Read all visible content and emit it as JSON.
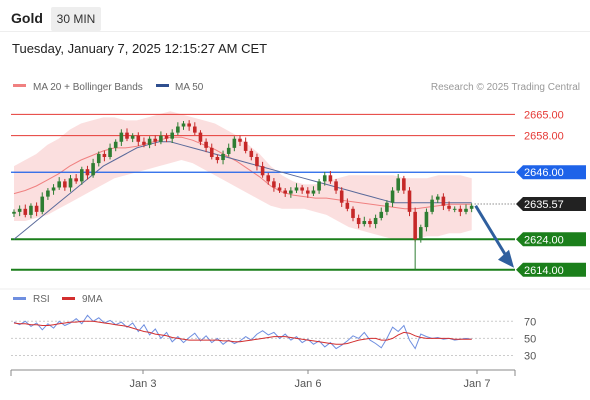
{
  "header": {
    "instrument": "Gold",
    "timeframe": "30 MIN",
    "datetime": "Tuesday, January 7, 2025 12:15:27 AM CET"
  },
  "watermark": "Research © 2025 Trading Central",
  "colors": {
    "bull_candle": "#2e7d32",
    "bear_candle": "#c62828",
    "resistance": "#e53935",
    "current_level": "#1e63e9",
    "support": "#1b7f1b",
    "ma50": "#5a6a9a",
    "bands": "#f8c9c9",
    "rsi": "#6f8fe0",
    "rsi_ma": "#d32f2f",
    "arrow": "#2f5f9e",
    "price_tag": "#222222"
  },
  "chart_data": {
    "type": "candlestick",
    "legend": [
      {
        "label": "MA 20 + Bollinger Bands",
        "color": "#f08080"
      },
      {
        "label": "MA 50",
        "color": "#2f4f8f"
      }
    ],
    "x_ticks": [
      "Jan 3",
      "Jan 6",
      "Jan 7"
    ],
    "ylim": [
      2609,
      2672
    ],
    "last_price": 2635.57,
    "levels": [
      {
        "value": 2665.0,
        "label": "2665.00",
        "kind": "resistance"
      },
      {
        "value": 2658.0,
        "label": "2658.00",
        "kind": "resistance"
      },
      {
        "value": 2646.0,
        "label": "2646.00",
        "kind": "pivot"
      },
      {
        "value": 2624.0,
        "label": "2624.00",
        "kind": "support"
      },
      {
        "value": 2614.0,
        "label": "2614.00",
        "kind": "support"
      }
    ],
    "forecast_arrow": {
      "from": 2635.0,
      "to": 2614.0
    },
    "close": [
      2633,
      2634,
      2632,
      2635,
      2633,
      2638,
      2640,
      2641,
      2643,
      2641,
      2644,
      2643,
      2647,
      2645,
      2649,
      2652,
      2651,
      2654,
      2656,
      2659,
      2657,
      2658,
      2656,
      2655,
      2657,
      2656,
      2658,
      2657,
      2659,
      2661,
      2662,
      2661,
      2659,
      2656,
      2654,
      2651,
      2650,
      2652,
      2654,
      2657,
      2656,
      2653,
      2651,
      2648,
      2645,
      2643,
      2641,
      2640,
      2639,
      2640,
      2641,
      2640,
      2639,
      2640,
      2643,
      2645,
      2643,
      2640,
      2636,
      2634,
      2631,
      2629,
      2630,
      2629,
      2631,
      2633,
      2636,
      2640,
      2644,
      2640,
      2633,
      2624,
      2628,
      2633,
      2637,
      2638,
      2635,
      2634,
      2634,
      2633,
      2634,
      2635
    ],
    "bollinger": {
      "upper": [
        2648,
        2650,
        2652,
        2655,
        2657,
        2660,
        2662,
        2663,
        2664,
        2664,
        2663,
        2663,
        2664,
        2665,
        2666,
        2665,
        2664,
        2663,
        2662,
        2660,
        2658,
        2655,
        2652,
        2648,
        2645,
        2643,
        2642,
        2642,
        2643,
        2644,
        2645,
        2645,
        2645,
        2645,
        2645,
        2644,
        2644,
        2644,
        2645,
        2645,
        2645,
        2644
      ],
      "lower": [
        2630,
        2630,
        2631,
        2632,
        2634,
        2636,
        2638,
        2640,
        2642,
        2644,
        2645,
        2646,
        2647,
        2648,
        2649,
        2650,
        2649,
        2647,
        2645,
        2643,
        2641,
        2639,
        2637,
        2635,
        2634,
        2634,
        2634,
        2633,
        2632,
        2630,
        2628,
        2627,
        2626,
        2625,
        2624,
        2624,
        2624,
        2625,
        2625,
        2626,
        2626,
        2627
      ]
    },
    "ma50": [
      2624,
      2627,
      2630,
      2633,
      2636,
      2639,
      2642,
      2645,
      2648,
      2650,
      2652,
      2654,
      2655,
      2656,
      2656,
      2655,
      2654,
      2653,
      2652,
      2651,
      2650,
      2649,
      2648,
      2647,
      2646,
      2645,
      2644,
      2643,
      2642,
      2641,
      2640,
      2639,
      2638,
      2637,
      2636,
      2636,
      2636,
      2636,
      2636,
      2636,
      2636,
      2636
    ],
    "rsi": {
      "label": "RSI",
      "ma_label": "9MA",
      "ticks": [
        70,
        50,
        30
      ],
      "ylim": [
        20,
        82
      ],
      "values": [
        69,
        66,
        70,
        64,
        68,
        60,
        67,
        62,
        70,
        65,
        68,
        73,
        67,
        77,
        70,
        74,
        68,
        71,
        66,
        69,
        63,
        68,
        58,
        66,
        54,
        61,
        50,
        57,
        46,
        52,
        45,
        51,
        56,
        47,
        53,
        45,
        50,
        43,
        48,
        44,
        47,
        52,
        48,
        55,
        59,
        54,
        57,
        50,
        55,
        48,
        52,
        45,
        49,
        43,
        47,
        40,
        45,
        38,
        42,
        47,
        53,
        50,
        57,
        48,
        44,
        39,
        50,
        63,
        58,
        65,
        48,
        38,
        55,
        52,
        50,
        51,
        49,
        50,
        48,
        49,
        50,
        49
      ],
      "ma": [
        68,
        67,
        67,
        66,
        66,
        65,
        65,
        66,
        67,
        68,
        69,
        69,
        70,
        70,
        70,
        69,
        68,
        67,
        66,
        65,
        64,
        62,
        60,
        58,
        57,
        55,
        54,
        53,
        51,
        50,
        49,
        48,
        48,
        48,
        48,
        48,
        48,
        47,
        47,
        46,
        46,
        47,
        48,
        49,
        50,
        51,
        52,
        52,
        52,
        51,
        50,
        49,
        48,
        47,
        46,
        45,
        44,
        43,
        43,
        44,
        46,
        48,
        49,
        50,
        50,
        48,
        48,
        50,
        54,
        57,
        56,
        53,
        51,
        50,
        50,
        50,
        50,
        50,
        49,
        49,
        49,
        49
      ]
    }
  }
}
